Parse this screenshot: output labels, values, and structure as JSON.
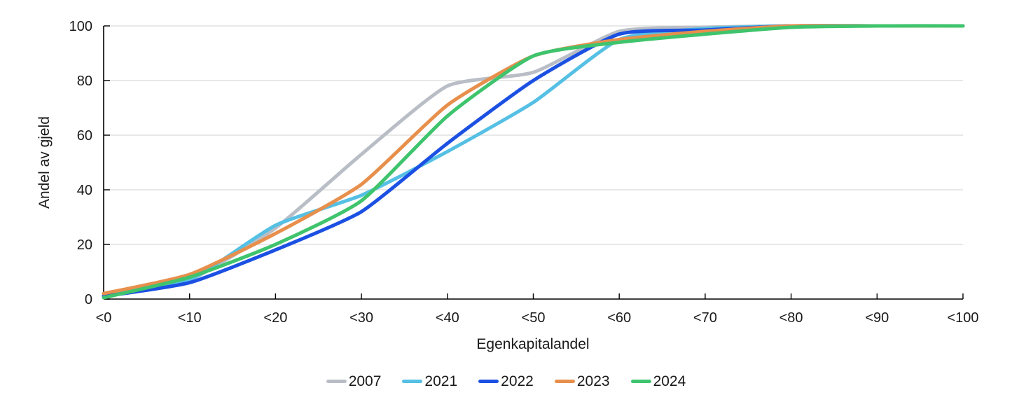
{
  "chart_data": {
    "type": "line",
    "title": "",
    "xlabel": "Egenkapitalandel",
    "ylabel": "Andel av gjeld",
    "categories": [
      "<0",
      "<10",
      "<20",
      "<30",
      "<40",
      "<50",
      "<60",
      "<70",
      "<80",
      "<90",
      "<100"
    ],
    "series": [
      {
        "name": "2007",
        "color": "#b9bec6",
        "values": [
          1,
          7,
          26,
          53,
          78,
          83,
          98,
          99.5,
          100,
          100,
          100
        ]
      },
      {
        "name": "2021",
        "color": "#55c0e4",
        "values": [
          1.5,
          7,
          27,
          38,
          54,
          72,
          95,
          99,
          100,
          100,
          100
        ]
      },
      {
        "name": "2022",
        "color": "#1b50e2",
        "values": [
          1,
          6,
          18,
          32,
          57,
          80,
          97,
          98.5,
          100,
          100,
          100
        ]
      },
      {
        "name": "2023",
        "color": "#e78f4c",
        "values": [
          2,
          9,
          24,
          42,
          71,
          89,
          95,
          98,
          100,
          100,
          100
        ]
      },
      {
        "name": "2024",
        "color": "#3fc46d",
        "values": [
          0.5,
          8,
          20,
          36,
          67,
          89,
          94,
          97,
          99.5,
          100,
          100
        ]
      }
    ],
    "ylim": [
      0,
      100
    ],
    "yticks": [
      0,
      20,
      40,
      60,
      80,
      100
    ],
    "grid": true,
    "legend_position": "bottom"
  },
  "colors": {
    "grid": "#d9d9d9",
    "axis": "#000000",
    "text": "#1a1a1a"
  }
}
